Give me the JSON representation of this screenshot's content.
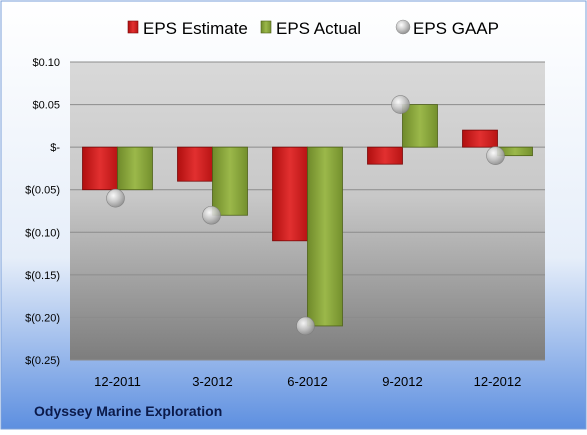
{
  "chart_data": {
    "type": "bar",
    "title": "",
    "company": "Odyssey Marine Exploration",
    "legend_position": "top",
    "categories": [
      "12-2011",
      "3-2012",
      "6-2012",
      "9-2012",
      "12-2012"
    ],
    "series": [
      {
        "name": "EPS Estimate",
        "kind": "bar",
        "color": "#cc1b1b",
        "values": [
          -0.05,
          -0.04,
          -0.11,
          -0.02,
          0.02
        ]
      },
      {
        "name": "EPS Actual",
        "kind": "bar",
        "color": "#8aa33b",
        "values": [
          -0.05,
          -0.08,
          -0.21,
          0.05,
          -0.01
        ]
      },
      {
        "name": "EPS GAAP",
        "kind": "marker",
        "color": "#b8b8b8",
        "values": [
          -0.06,
          -0.08,
          -0.21,
          0.05,
          -0.01
        ]
      }
    ],
    "ylim": [
      -0.25,
      0.1
    ],
    "yticks": [
      0.1,
      0.05,
      0.0,
      -0.05,
      -0.1,
      -0.15,
      -0.2,
      -0.25
    ],
    "ytick_labels": [
      "$0.10",
      "$0.05",
      "$-",
      "$(0.05)",
      "$(0.10)",
      "$(0.15)",
      "$(0.20)",
      "$(0.25)"
    ],
    "grid": true
  }
}
